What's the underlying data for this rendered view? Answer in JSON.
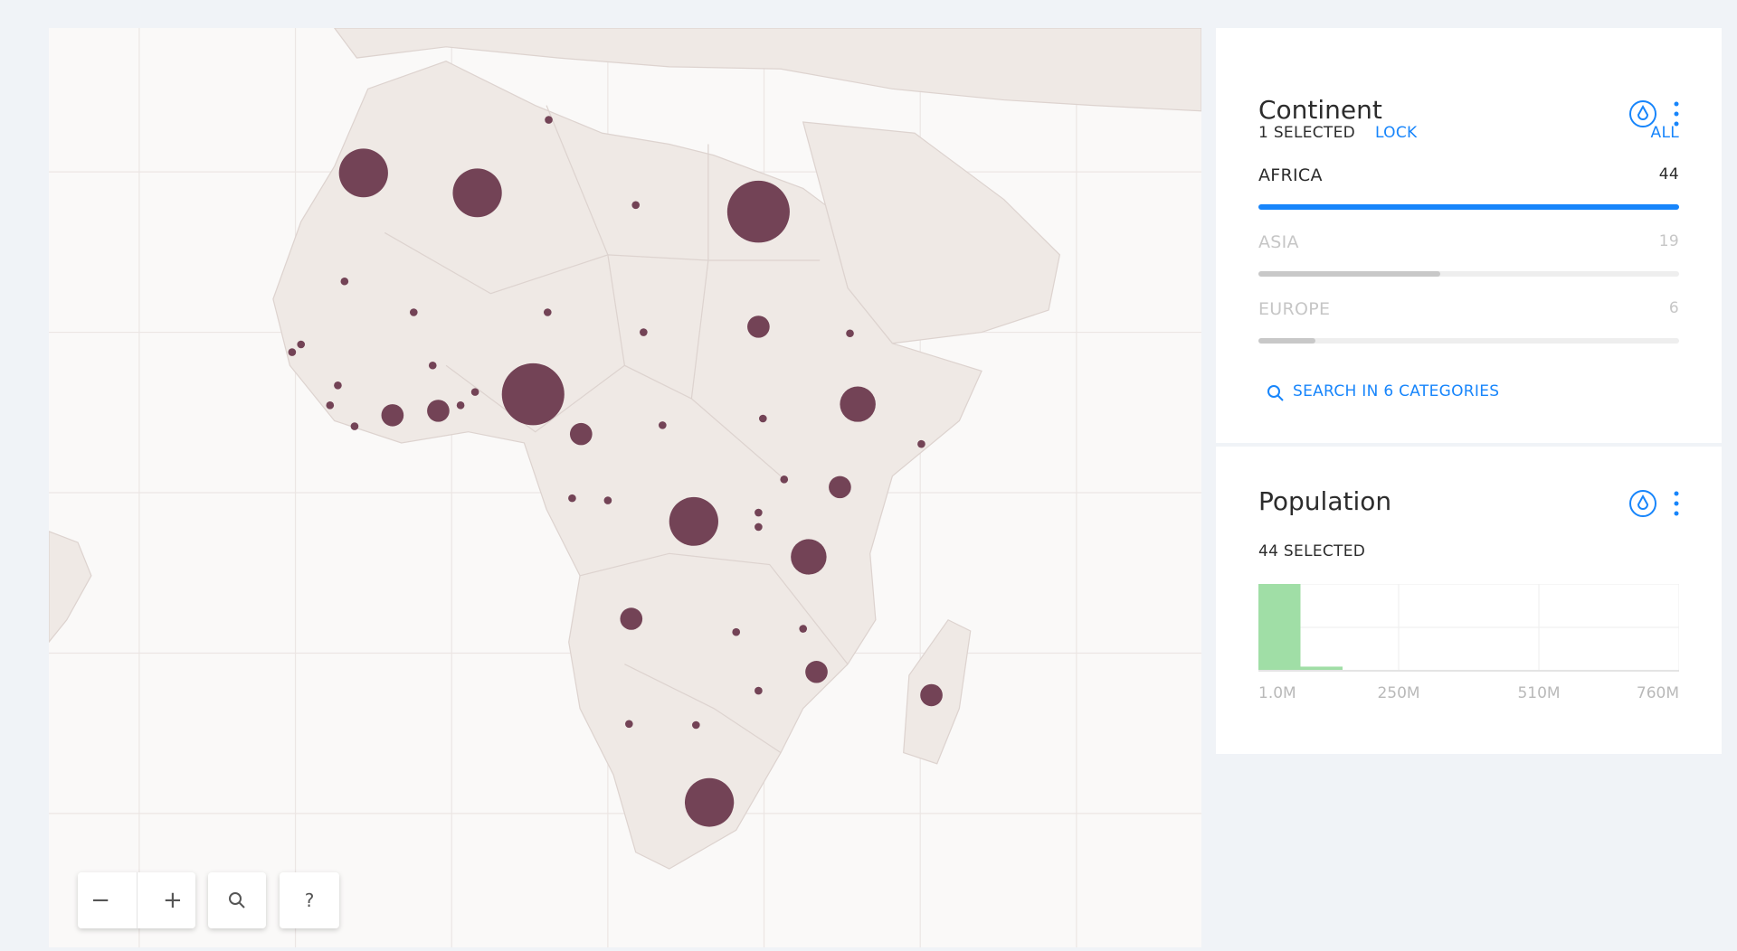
{
  "map_controls": {
    "zoom_out": "−",
    "zoom_in": "+",
    "help": "?"
  },
  "widgets": [
    {
      "title": "Continent",
      "status": "1 SELECTED",
      "lock": "LOCK",
      "all": "ALL",
      "categories": [
        {
          "name": "AFRICA",
          "count": 44,
          "selected": true
        },
        {
          "name": "ASIA",
          "count": 19,
          "selected": false
        },
        {
          "name": "EUROPE",
          "count": 6,
          "selected": false
        }
      ],
      "search": "SEARCH IN 6 CATEGORIES"
    },
    {
      "title": "Population",
      "status": "44 SELECTED",
      "histogram": {
        "counts": [
          42,
          2,
          0,
          0,
          0,
          0,
          0,
          0,
          0,
          0
        ],
        "x_labels": [
          "1.0M",
          "250M",
          "510M",
          "760M"
        ],
        "color": "#a0dea6"
      }
    }
  ]
}
